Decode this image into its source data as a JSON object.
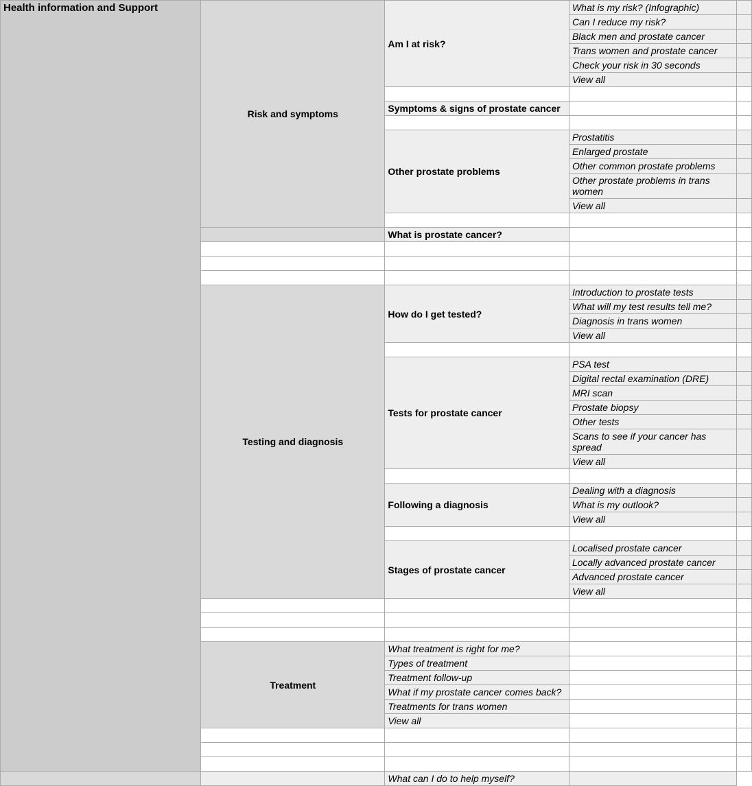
{
  "colors": {
    "main_bg": "#cccccc",
    "cat_bg": "#d9d9d9",
    "shaded_bg": "#eeeeee",
    "white_bg": "#ffffff",
    "border": "#aaaaaa",
    "text": "#000000"
  },
  "main_title": "Health information and Support",
  "categories": {
    "risk_symptoms": {
      "title": "Risk and symptoms",
      "subsections": {
        "am_i_at_risk": {
          "title": "Am I at risk?",
          "items": [
            "What is my risk? (Infographic)",
            "Can I reduce my risk?",
            "Black men and prostate cancer",
            "Trans women and prostate cancer",
            "Check your risk in 30 seconds",
            "View all"
          ]
        },
        "symptoms": {
          "title": "Symptoms & signs of prostate cancer"
        },
        "other_problems": {
          "title": "Other prostate problems",
          "items": [
            "Prostatitis",
            "Enlarged prostate",
            "Other common prostate problems",
            "Other prostate problems in trans women",
            "View all"
          ]
        },
        "what_is": {
          "title": "What is prostate cancer?"
        }
      }
    },
    "testing_diagnosis": {
      "title": "Testing and diagnosis",
      "subsections": {
        "how_tested": {
          "title": "How do I get tested?",
          "items": [
            "Introduction to prostate tests",
            "What will my test results tell me?",
            "Diagnosis in trans women",
            "View all"
          ]
        },
        "tests": {
          "title": "Tests for prostate cancer",
          "items": [
            "PSA test",
            "Digital rectal examination (DRE)",
            "MRI scan",
            "Prostate biopsy",
            "Other tests",
            "Scans to see if your cancer has spread",
            "View all"
          ]
        },
        "following": {
          "title": "Following a diagnosis",
          "items": [
            "Dealing with a diagnosis",
            "What is my outlook?",
            "View all"
          ]
        },
        "stages": {
          "title": "Stages of prostate cancer",
          "items": [
            "Localised prostate cancer",
            "Locally advanced prostate cancer",
            "Advanced prostate cancer",
            "View all"
          ]
        }
      }
    },
    "treatment": {
      "title": "Treatment",
      "items": [
        "What treatment is right for me?",
        "Types of treatment",
        "Treatment follow-up",
        "What if my prostate cancer comes back?",
        "Treatments for trans women",
        "View all"
      ]
    },
    "living": {
      "partial_item": "What can I do to help myself?"
    }
  }
}
